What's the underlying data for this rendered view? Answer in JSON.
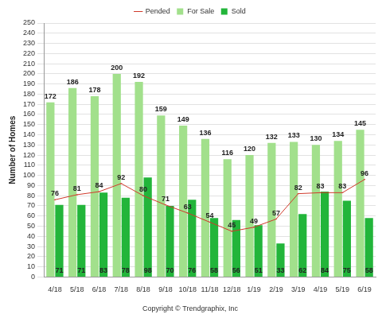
{
  "chart_data": {
    "type": "bar",
    "categories": [
      "4/18",
      "5/18",
      "6/18",
      "7/18",
      "8/18",
      "9/18",
      "10/18",
      "11/18",
      "12/18",
      "1/19",
      "2/19",
      "3/19",
      "4/19",
      "5/19",
      "6/19"
    ],
    "series": [
      {
        "name": "For Sale",
        "type": "bar",
        "color": "#a2e08c",
        "values": [
          172,
          186,
          178,
          200,
          192,
          159,
          149,
          136,
          116,
          120,
          132,
          133,
          130,
          134,
          145
        ]
      },
      {
        "name": "Sold",
        "type": "bar",
        "color": "#22b53a",
        "values": [
          71,
          71,
          83,
          78,
          98,
          70,
          76,
          58,
          56,
          51,
          33,
          62,
          84,
          75,
          58
        ]
      },
      {
        "name": "Pended",
        "type": "line",
        "color": "#d0392b",
        "values": [
          76,
          81,
          84,
          92,
          80,
          71,
          63,
          54,
          45,
          49,
          57,
          82,
          83,
          83,
          96
        ]
      }
    ],
    "y_label": "Number of Homes",
    "annotations": [
      "Copyright © Trendgraphix, Inc"
    ],
    "ylim": [
      0,
      250
    ],
    "yticks": [
      0,
      10,
      20,
      30,
      40,
      50,
      60,
      70,
      80,
      90,
      100,
      110,
      120,
      130,
      140,
      150,
      160,
      170,
      180,
      190,
      200,
      210,
      220,
      230,
      240,
      250
    ],
    "grid": true,
    "legend": "top",
    "data_labels": true
  }
}
